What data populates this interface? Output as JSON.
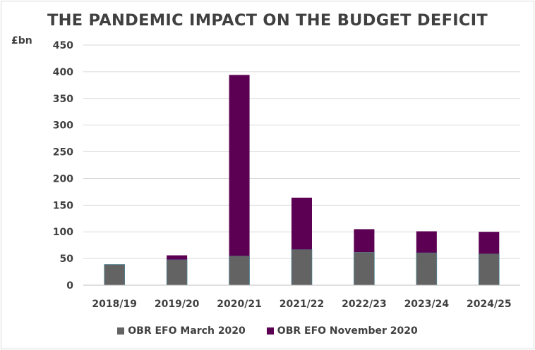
{
  "chart_data": {
    "type": "bar",
    "stacked": true,
    "title": "THE PANDEMIC IMPACT ON THE BUDGET DEFICIT",
    "ylabel": "£bn",
    "xlabel": "",
    "ylim": [
      0,
      450
    ],
    "yticks": [
      0,
      50,
      100,
      150,
      200,
      250,
      300,
      350,
      400,
      450
    ],
    "grid": true,
    "legend_position": "bottom",
    "categories": [
      "2018/19",
      "2019/20",
      "2020/21",
      "2021/22",
      "2022/23",
      "2023/24",
      "2024/25"
    ],
    "series": [
      {
        "name": "OBR EFO March 2020",
        "color": "#636363",
        "values": [
          39,
          48,
          55,
          67,
          62,
          61,
          59
        ]
      },
      {
        "name": "OBR EFO November 2020",
        "color": "#5b0052",
        "values": [
          0,
          8,
          339,
          97,
          43,
          40,
          41
        ]
      }
    ]
  }
}
